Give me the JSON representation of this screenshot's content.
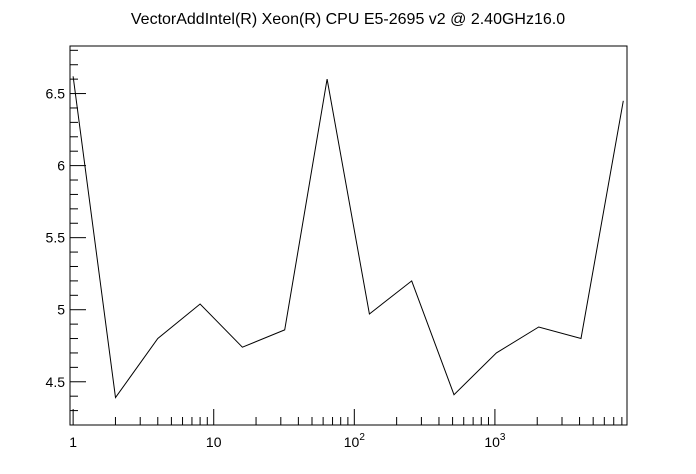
{
  "chart_data": {
    "type": "line",
    "title": "VectorAddIntel(R) Xeon(R) CPU E5-2695 v2 @ 2.40GHz16.0",
    "xlabel": "",
    "ylabel": "",
    "x_scale": "log10",
    "xlim": [
      0.95,
      8700
    ],
    "ylim": [
      4.2,
      6.83
    ],
    "grid": false,
    "x": [
      1,
      2,
      4,
      8,
      16,
      32,
      64,
      128,
      256,
      512,
      1024,
      2048,
      4096,
      8192
    ],
    "series": [
      {
        "values": [
          6.62,
          4.39,
          4.8,
          5.04,
          4.74,
          4.86,
          6.6,
          4.97,
          5.2,
          4.41,
          4.7,
          4.88,
          4.8,
          6.45
        ]
      }
    ],
    "y_ticks": [
      {
        "value": 4.5,
        "label": "4.5"
      },
      {
        "value": 5,
        "label": "5"
      },
      {
        "value": 5.5,
        "label": "5.5"
      },
      {
        "value": 6,
        "label": "6"
      },
      {
        "value": 6.5,
        "label": "6.5"
      }
    ],
    "x_ticks": [
      {
        "value": 1,
        "base": "1",
        "exp": ""
      },
      {
        "value": 10,
        "base": "10",
        "exp": ""
      },
      {
        "value": 100,
        "base": "10",
        "exp": "2"
      },
      {
        "value": 1000,
        "base": "10",
        "exp": "3"
      }
    ]
  }
}
